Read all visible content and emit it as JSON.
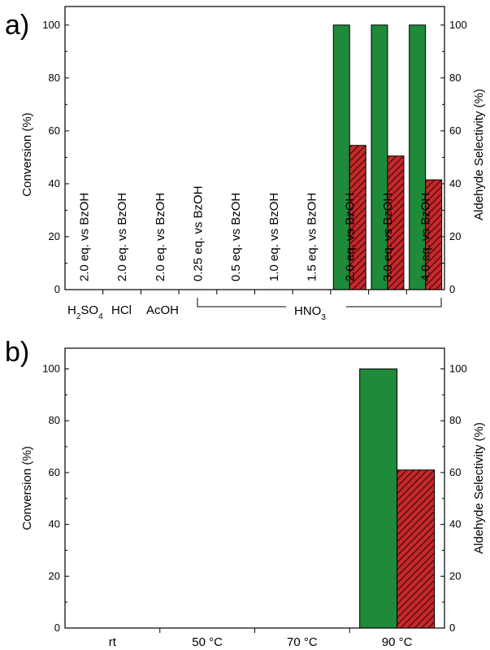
{
  "colors": {
    "conversion": "#1f8a3a",
    "selectivity": "#c8282a",
    "hatch": "#2a0a0a"
  },
  "chart_data": [
    {
      "panel": "a)",
      "type": "bar",
      "ylabel": "Conversion (%)",
      "y2label": "Aldehyde Selectivity (%)",
      "ylim": [
        0,
        107
      ],
      "y2lim": [
        0,
        107
      ],
      "yticks": [
        0,
        20,
        40,
        60,
        80,
        100
      ],
      "categories": [
        "2.0 eq. vs BzOH",
        "2.0 eq. vs BzOH",
        "2.0 eq. vs BzOH",
        "0.25 eq. vs BzOH",
        "0.5 eq. vs BzOH",
        "1.0 eq. vs BzOH",
        "1.5 eq. vs BzOH",
        "2.0 eq. vs BzOH",
        "3.0 eq. vs BzOH",
        "4.0 eq. vs BzOH"
      ],
      "series": [
        {
          "name": "Conversion",
          "values": [
            0,
            0,
            0,
            0,
            0,
            0,
            0,
            100,
            100,
            100
          ]
        },
        {
          "name": "Aldehyde Selectivity",
          "values": [
            0,
            0,
            0,
            0,
            0,
            0,
            0,
            54.5,
            50.5,
            41.5
          ]
        }
      ],
      "group_labels": [
        "H2SO4",
        "HCl",
        "AcOH",
        "HNO3"
      ]
    },
    {
      "panel": "b)",
      "type": "bar",
      "ylabel": "Conversion (%)",
      "y2label": "Aldehyde Selectivity (%)",
      "ylim": [
        0,
        108
      ],
      "y2lim": [
        0,
        108
      ],
      "yticks": [
        0,
        20,
        40,
        60,
        80,
        100
      ],
      "categories": [
        "rt",
        "50 °C",
        "70 °C",
        "90 °C"
      ],
      "series": [
        {
          "name": "Conversion",
          "values": [
            0,
            0,
            0,
            100
          ]
        },
        {
          "name": "Aldehyde Selectivity",
          "values": [
            0,
            0,
            0,
            61
          ]
        }
      ]
    }
  ]
}
